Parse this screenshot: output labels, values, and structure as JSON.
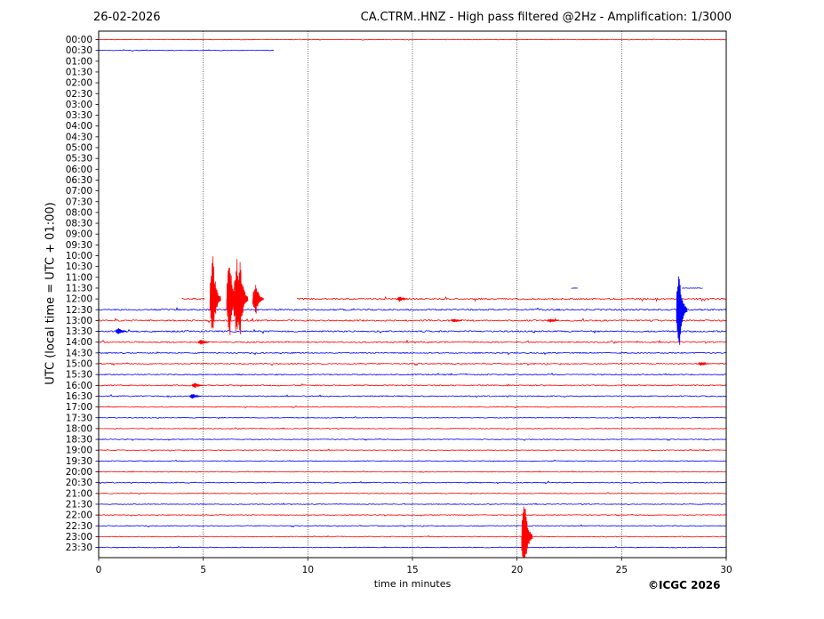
{
  "header": {
    "date": "26-02-2026",
    "title": "CA.CTRM..HNZ - High pass filtered @2Hz - Amplification: 1/3000"
  },
  "footer": {
    "copyright": "©ICGC 2026"
  },
  "chart_data": {
    "type": "line",
    "title": "CA.CTRM..HNZ - High pass filtered @2Hz - Amplification: 1/3000",
    "xlabel": "time in minutes",
    "ylabel": "UTC (local time = UTC + 01:00)",
    "xlim": [
      0,
      30
    ],
    "xticks": [
      0,
      5,
      10,
      15,
      20,
      25,
      30
    ],
    "grid": "vertical-dotted",
    "row_labels": [
      "00:00",
      "00:30",
      "01:00",
      "01:30",
      "02:00",
      "02:30",
      "03:00",
      "03:30",
      "04:00",
      "04:30",
      "05:00",
      "05:30",
      "06:00",
      "06:30",
      "07:00",
      "07:30",
      "08:00",
      "08:30",
      "09:00",
      "09:30",
      "10:00",
      "10:30",
      "11:00",
      "11:30",
      "12:00",
      "12:30",
      "13:00",
      "13:30",
      "14:00",
      "14:30",
      "15:00",
      "15:30",
      "16:00",
      "16:30",
      "17:00",
      "17:30",
      "18:00",
      "18:30",
      "19:00",
      "19:30",
      "20:00",
      "20:30",
      "21:00",
      "21:30",
      "22:00",
      "22:30",
      "23:00",
      "23:30"
    ],
    "trace_colors": [
      "#ff0000",
      "#0000ff"
    ],
    "traces": [
      {
        "row": "00:00",
        "start": 0.0,
        "end": 30,
        "noise": 0.3
      },
      {
        "row": "00:30",
        "start": 0.0,
        "end": 8.4,
        "noise": 0.3
      },
      {
        "row": "11:30",
        "start": 22.6,
        "end": 22.9,
        "noise": 0.3
      },
      {
        "row": "11:30",
        "start": 27.9,
        "end": 28.9,
        "noise": 0.3
      },
      {
        "row": "12:00",
        "start": 4.0,
        "end": 5.1,
        "noise": 0.8
      },
      {
        "row": "12:00",
        "start": 9.5,
        "end": 30,
        "noise": 0.8
      },
      {
        "row": "12:30",
        "start": 0,
        "end": 30,
        "noise": 0.8
      },
      {
        "row": "13:00",
        "start": 0,
        "end": 30,
        "noise": 0.8
      },
      {
        "row": "13:30",
        "start": 0,
        "end": 30,
        "noise": 0.8
      },
      {
        "row": "14:00",
        "start": 0,
        "end": 30,
        "noise": 0.7
      },
      {
        "row": "14:30",
        "start": 0,
        "end": 30,
        "noise": 0.6
      },
      {
        "row": "15:00",
        "start": 0,
        "end": 30,
        "noise": 0.6
      },
      {
        "row": "15:30",
        "start": 0,
        "end": 30,
        "noise": 0.6
      },
      {
        "row": "16:00",
        "start": 0,
        "end": 30,
        "noise": 0.6
      },
      {
        "row": "16:30",
        "start": 0,
        "end": 30,
        "noise": 0.6
      },
      {
        "row": "17:00",
        "start": 0,
        "end": 30,
        "noise": 0.4
      },
      {
        "row": "17:30",
        "start": 0,
        "end": 30,
        "noise": 0.4
      },
      {
        "row": "18:00",
        "start": 0,
        "end": 30,
        "noise": 0.4
      },
      {
        "row": "18:30",
        "start": 0,
        "end": 30,
        "noise": 0.4
      },
      {
        "row": "19:00",
        "start": 0,
        "end": 30,
        "noise": 0.4
      },
      {
        "row": "19:30",
        "start": 0,
        "end": 30,
        "noise": 0.4
      },
      {
        "row": "20:00",
        "start": 0,
        "end": 30,
        "noise": 0.4
      },
      {
        "row": "20:30",
        "start": 0,
        "end": 30,
        "noise": 0.5
      },
      {
        "row": "21:00",
        "start": 0,
        "end": 30,
        "noise": 0.4
      },
      {
        "row": "21:30",
        "start": 0,
        "end": 30,
        "noise": 0.4
      },
      {
        "row": "22:00",
        "start": 0,
        "end": 30,
        "noise": 0.4
      },
      {
        "row": "22:30",
        "start": 0,
        "end": 30,
        "noise": 0.4
      },
      {
        "row": "23:00",
        "start": 0,
        "end": 30,
        "noise": 0.4
      },
      {
        "row": "23:30",
        "start": 0,
        "end": 30,
        "noise": 0.4
      }
    ],
    "events": [
      {
        "row": "12:00",
        "x": 5.45,
        "amp_rows": 4.5
      },
      {
        "row": "12:00",
        "x": 6.25,
        "amp_rows": 4.5
      },
      {
        "row": "12:00",
        "x": 6.6,
        "amp_rows": 4.5
      },
      {
        "row": "12:00",
        "x": 6.75,
        "amp_rows": 4.5
      },
      {
        "row": "12:00",
        "x": 7.5,
        "amp_rows": 1.8
      },
      {
        "row": "12:00",
        "x": 14.4,
        "amp_rows": 0.3
      },
      {
        "row": "12:30",
        "x": 27.75,
        "amp_rows": 4.5
      },
      {
        "row": "13:00",
        "x": 17.0,
        "amp_rows": 0.2
      },
      {
        "row": "13:00",
        "x": 21.6,
        "amp_rows": 0.2
      },
      {
        "row": "13:30",
        "x": 0.95,
        "amp_rows": 0.4
      },
      {
        "row": "14:00",
        "x": 4.9,
        "amp_rows": 0.3
      },
      {
        "row": "15:00",
        "x": 28.8,
        "amp_rows": 0.2
      },
      {
        "row": "16:00",
        "x": 4.6,
        "amp_rows": 0.3
      },
      {
        "row": "16:30",
        "x": 4.5,
        "amp_rows": 0.3
      },
      {
        "row": "23:00",
        "x": 20.35,
        "amp_rows": 4.5
      }
    ]
  }
}
